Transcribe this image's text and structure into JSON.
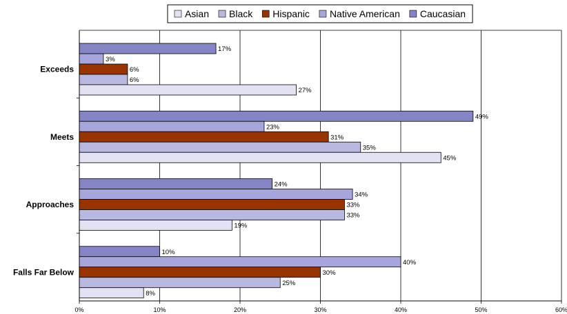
{
  "chart_data": {
    "type": "bar",
    "orientation": "horizontal",
    "categories": [
      "Exceeds",
      "Meets",
      "Approaches",
      "Falls Far Below"
    ],
    "series": [
      {
        "name": "Asian",
        "color": "#e2e2f2",
        "values": [
          27,
          45,
          19,
          8
        ]
      },
      {
        "name": "Black",
        "color": "#b8b8e0",
        "values": [
          6,
          35,
          33,
          25
        ]
      },
      {
        "name": "Hispanic",
        "color": "#993300",
        "values": [
          6,
          31,
          33,
          30
        ]
      },
      {
        "name": "Native American",
        "color": "#a6a6dc",
        "values": [
          3,
          23,
          34,
          40
        ]
      },
      {
        "name": "Caucasian",
        "color": "#8585c6",
        "values": [
          17,
          49,
          24,
          10
        ]
      }
    ],
    "xlim": [
      0,
      60
    ],
    "xticks": [
      0,
      10,
      20,
      30,
      40,
      50,
      60
    ],
    "tick_format": "%",
    "grid": "vertical",
    "legend": "top",
    "data_labels": true
  }
}
